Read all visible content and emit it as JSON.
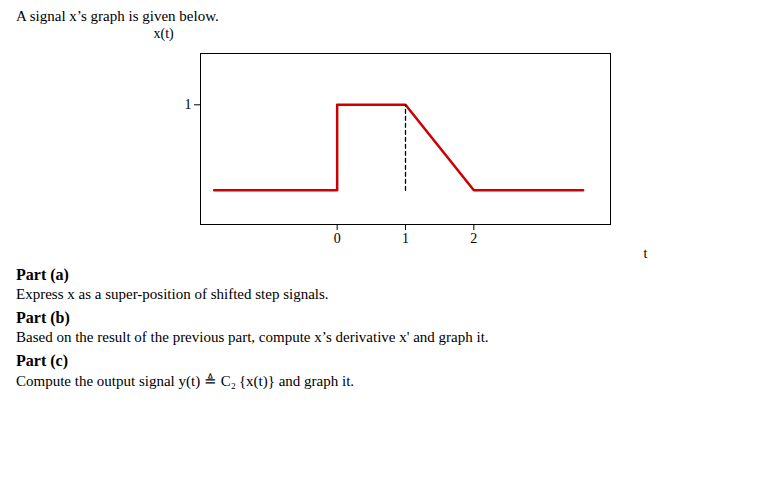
{
  "chart_data": {
    "type": "line",
    "title": "A signal x’s graph is given below.",
    "xlabel": "t",
    "ylabel": "x(t)",
    "series": [
      {
        "x": [
          -1.8,
          0,
          0,
          1,
          2,
          3.6
        ],
        "values": [
          0,
          0,
          1,
          1,
          0,
          0
        ],
        "color": "#cc0000",
        "line_style": "solid"
      },
      {
        "x": [
          1,
          1
        ],
        "values": [
          0,
          1
        ],
        "color": "#000000",
        "line_style": "dashed"
      }
    ],
    "xlim": [
      -2.0,
      4.0
    ],
    "ylim": [
      -0.4,
      1.6
    ],
    "xticks": [
      0,
      1,
      2
    ],
    "yticks": [
      1
    ],
    "grid": false,
    "annotations": [
      "Part (a)",
      "Express x as a super-position of shifted step signals.",
      "Part (b)",
      "Based on the result of the previous part, compute x’s derivative x' and graph it.",
      "Part (c)",
      "Compute the output signal y(t) ≜ C₂ {x(t)} and graph it."
    ]
  }
}
